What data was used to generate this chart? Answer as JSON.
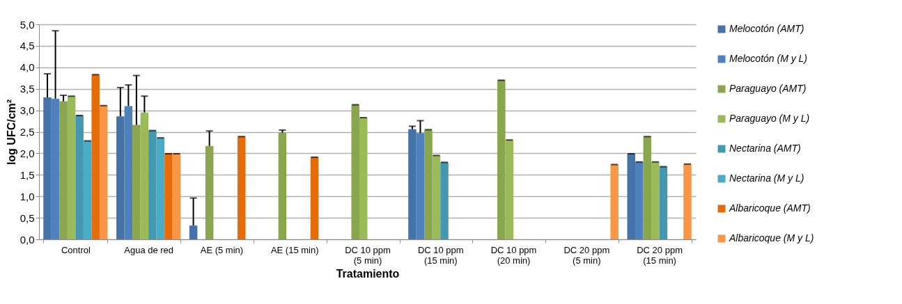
{
  "chart_data": {
    "type": "bar",
    "xlabel": "Tratamiento",
    "ylabel": "log UFC/cm²",
    "categories": [
      "Control",
      "Agua de red",
      "AE (5 min)",
      "AE (15 min)",
      "DC 10 ppm\n(5 min)",
      "DC 10 ppm\n(15 min)",
      "DC 10 ppm\n(20 min)",
      "DC 20 ppm\n(5 min)",
      "DC 20 ppm\n(15 min)"
    ],
    "series": [
      {
        "name": "Melocotón (AMT)",
        "color": "#4572a7",
        "values": [
          3.3,
          2.86,
          0.32,
          null,
          null,
          2.56,
          null,
          null,
          1.99
        ],
        "errors": [
          0.55,
          0.67,
          0.64,
          null,
          null,
          0.07,
          null,
          null,
          0
        ]
      },
      {
        "name": "Melocotón (M y L)",
        "color": "#4f81bd",
        "values": [
          3.27,
          3.1,
          null,
          null,
          null,
          2.47,
          null,
          null,
          1.8
        ],
        "errors": [
          1.58,
          0.49,
          null,
          null,
          null,
          0.29,
          null,
          null,
          0
        ]
      },
      {
        "name": "Paraguayo (AMT)",
        "color": "#89a54e",
        "values": [
          3.21,
          2.66,
          2.17,
          2.48,
          3.13,
          2.55,
          3.7,
          null,
          2.39
        ],
        "errors": [
          0.14,
          1.15,
          0.35,
          0.06,
          0,
          0,
          0,
          null,
          0
        ]
      },
      {
        "name": "Paraguayo (M y L)",
        "color": "#9bbb59",
        "values": [
          3.33,
          2.95,
          null,
          null,
          2.83,
          1.95,
          2.31,
          null,
          1.8
        ],
        "errors": [
          0,
          0.38,
          null,
          null,
          0,
          0,
          0,
          null,
          0
        ]
      },
      {
        "name": "Nectarina (AMT)",
        "color": "#4198af",
        "values": [
          2.88,
          2.53,
          null,
          null,
          null,
          1.79,
          null,
          null,
          1.69
        ],
        "errors": [
          0,
          0,
          null,
          null,
          null,
          0,
          null,
          null,
          0
        ]
      },
      {
        "name": "Nectarina (M y L)",
        "color": "#4bacc6",
        "values": [
          2.29,
          2.36,
          null,
          null,
          null,
          null,
          null,
          null,
          null
        ],
        "errors": [
          0,
          0,
          null,
          null,
          null,
          null,
          null,
          null,
          null
        ]
      },
      {
        "name": "Albaricoque (AMT)",
        "color": "#e46c0a",
        "values": [
          3.83,
          1.99,
          2.39,
          1.91,
          null,
          null,
          null,
          null,
          null
        ],
        "errors": [
          0,
          0,
          0,
          0,
          null,
          null,
          null,
          null,
          null
        ]
      },
      {
        "name": "Albaricoque (M y L)",
        "color": "#f79646",
        "values": [
          3.11,
          1.99,
          null,
          null,
          null,
          null,
          null,
          1.74,
          1.75
        ],
        "errors": [
          0,
          0,
          null,
          null,
          null,
          null,
          null,
          0,
          0
        ]
      }
    ],
    "ylim": [
      0,
      5
    ],
    "yticks": [
      {
        "value": 0,
        "label": "0,0"
      },
      {
        "value": 0.5,
        "label": "0,5"
      },
      {
        "value": 1,
        "label": "1,0"
      },
      {
        "value": 1.5,
        "label": "1,5"
      },
      {
        "value": 2,
        "label": "2,0"
      },
      {
        "value": 2.5,
        "label": "2,5"
      },
      {
        "value": 3,
        "label": "3,0"
      },
      {
        "value": 3.5,
        "label": "3,5"
      },
      {
        "value": 4,
        "label": "4,0"
      },
      {
        "value": 4.5,
        "label": "4,5"
      },
      {
        "value": 5,
        "label": "5,0"
      }
    ],
    "grid": "y",
    "legend": "right"
  }
}
